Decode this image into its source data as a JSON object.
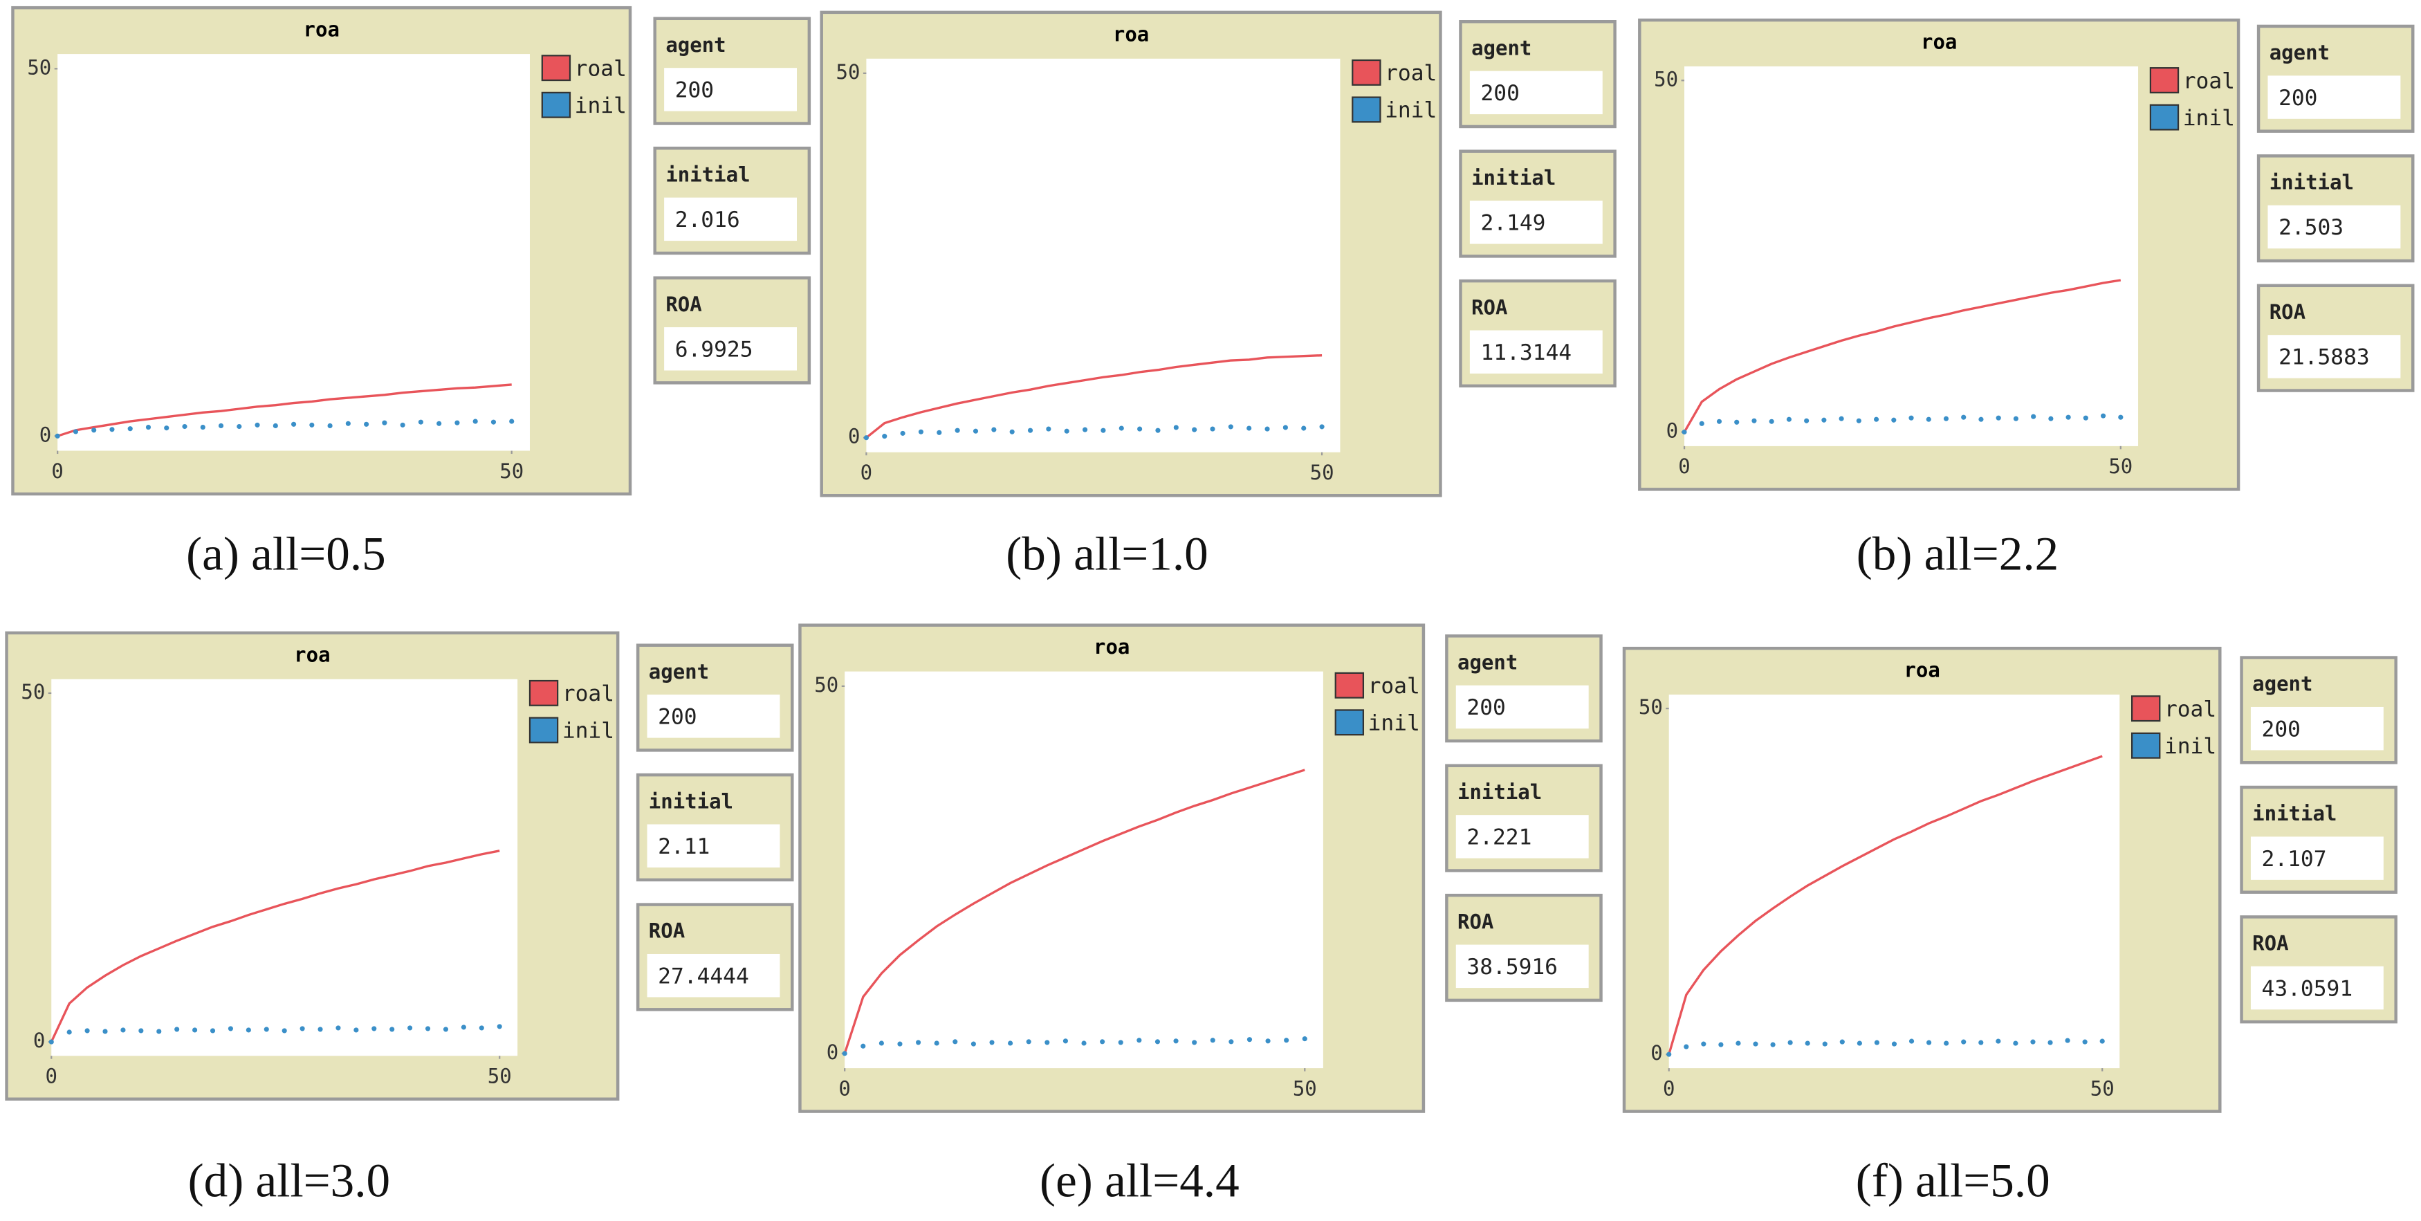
{
  "chart_data": [
    {
      "type": "line",
      "title": "roa",
      "caption": "(a) all=0.5",
      "x": [
        0,
        2,
        4,
        6,
        8,
        10,
        12,
        14,
        16,
        18,
        20,
        22,
        24,
        26,
        28,
        30,
        32,
        34,
        36,
        38,
        40,
        42,
        44,
        46,
        48,
        50
      ],
      "xlim": [
        0,
        52
      ],
      "ylim": [
        -2,
        52
      ],
      "xticks": [
        0,
        50
      ],
      "yticks": [
        0,
        50
      ],
      "series": [
        {
          "name": "roal",
          "color": "#e8545a",
          "values": [
            0,
            0.8,
            1.2,
            1.6,
            2.0,
            2.3,
            2.6,
            2.9,
            3.2,
            3.4,
            3.7,
            4.0,
            4.2,
            4.5,
            4.7,
            5.0,
            5.2,
            5.4,
            5.6,
            5.9,
            6.1,
            6.3,
            6.5,
            6.6,
            6.8,
            7.0
          ]
        },
        {
          "name": "inil",
          "color": "#3a8fc8",
          "style": "markers",
          "values": [
            0,
            0.6,
            0.8,
            0.9,
            1.0,
            1.2,
            1.1,
            1.3,
            1.2,
            1.4,
            1.3,
            1.5,
            1.4,
            1.6,
            1.5,
            1.4,
            1.7,
            1.6,
            1.8,
            1.5,
            1.9,
            1.7,
            1.8,
            2.0,
            1.9,
            2.0
          ]
        }
      ],
      "monitors": [
        {
          "label": "agent",
          "value": 200
        },
        {
          "label": "initial",
          "value": 2.016
        },
        {
          "label": "ROA",
          "value": 6.9925
        }
      ]
    },
    {
      "type": "line",
      "title": "roa",
      "caption": "(b) all=1.0",
      "x": [
        0,
        2,
        4,
        6,
        8,
        10,
        12,
        14,
        16,
        18,
        20,
        22,
        24,
        26,
        28,
        30,
        32,
        34,
        36,
        38,
        40,
        42,
        44,
        46,
        48,
        50
      ],
      "xlim": [
        0,
        52
      ],
      "ylim": [
        -2,
        52
      ],
      "xticks": [
        0,
        50
      ],
      "yticks": [
        0,
        50
      ],
      "series": [
        {
          "name": "roal",
          "color": "#e8545a",
          "values": [
            0,
            2.0,
            2.8,
            3.5,
            4.1,
            4.7,
            5.2,
            5.7,
            6.2,
            6.6,
            7.1,
            7.5,
            7.9,
            8.3,
            8.6,
            9.0,
            9.3,
            9.7,
            10.0,
            10.3,
            10.6,
            10.7,
            11.0,
            11.1,
            11.2,
            11.3
          ]
        },
        {
          "name": "inil",
          "color": "#3a8fc8",
          "style": "markers",
          "values": [
            0,
            0.2,
            0.6,
            0.8,
            0.7,
            1.0,
            0.9,
            1.1,
            0.8,
            1.0,
            1.2,
            0.9,
            1.1,
            1.0,
            1.3,
            1.2,
            1.0,
            1.4,
            1.1,
            1.2,
            1.5,
            1.3,
            1.2,
            1.4,
            1.3,
            1.5
          ]
        }
      ],
      "monitors": [
        {
          "label": "agent",
          "value": 200
        },
        {
          "label": "initial",
          "value": 2.149
        },
        {
          "label": "ROA",
          "value": 11.3144
        }
      ]
    },
    {
      "type": "line",
      "title": "roa",
      "caption": "(b) all=2.2",
      "x": [
        0,
        2,
        4,
        6,
        8,
        10,
        12,
        14,
        16,
        18,
        20,
        22,
        24,
        26,
        28,
        30,
        32,
        34,
        36,
        38,
        40,
        42,
        44,
        46,
        48,
        50
      ],
      "xlim": [
        0,
        52
      ],
      "ylim": [
        -2,
        52
      ],
      "xticks": [
        0,
        50
      ],
      "yticks": [
        0,
        50
      ],
      "series": [
        {
          "name": "roal",
          "color": "#e8545a",
          "values": [
            0,
            4.3,
            6.1,
            7.5,
            8.6,
            9.7,
            10.6,
            11.4,
            12.2,
            13.0,
            13.7,
            14.3,
            15.0,
            15.6,
            16.2,
            16.7,
            17.3,
            17.8,
            18.3,
            18.8,
            19.3,
            19.8,
            20.2,
            20.7,
            21.2,
            21.6
          ]
        },
        {
          "name": "inil",
          "color": "#3a8fc8",
          "style": "markers",
          "values": [
            0,
            1.2,
            1.5,
            1.4,
            1.6,
            1.5,
            1.8,
            1.6,
            1.7,
            1.9,
            1.6,
            1.8,
            1.7,
            2.0,
            1.8,
            1.9,
            2.1,
            1.8,
            2.0,
            1.9,
            2.2,
            1.9,
            2.1,
            2.0,
            2.3,
            2.1
          ]
        }
      ],
      "monitors": [
        {
          "label": "agent",
          "value": 200
        },
        {
          "label": "initial",
          "value": 2.503
        },
        {
          "label": "ROA",
          "value": 21.5883
        }
      ]
    },
    {
      "type": "line",
      "title": "roa",
      "caption": "(d) all=3.0",
      "x": [
        0,
        2,
        4,
        6,
        8,
        10,
        12,
        14,
        16,
        18,
        20,
        22,
        24,
        26,
        28,
        30,
        32,
        34,
        36,
        38,
        40,
        42,
        44,
        46,
        48,
        50
      ],
      "xlim": [
        0,
        52
      ],
      "ylim": [
        -2,
        52
      ],
      "xticks": [
        0,
        50
      ],
      "yticks": [
        0,
        50
      ],
      "series": [
        {
          "name": "roal",
          "color": "#e8545a",
          "values": [
            0,
            5.5,
            7.8,
            9.5,
            11.0,
            12.3,
            13.4,
            14.5,
            15.5,
            16.5,
            17.3,
            18.2,
            19.0,
            19.8,
            20.5,
            21.3,
            22.0,
            22.6,
            23.3,
            23.9,
            24.5,
            25.2,
            25.7,
            26.3,
            26.9,
            27.4
          ]
        },
        {
          "name": "inil",
          "color": "#3a8fc8",
          "style": "markers",
          "values": [
            0,
            1.4,
            1.6,
            1.5,
            1.7,
            1.6,
            1.5,
            1.8,
            1.7,
            1.6,
            1.9,
            1.7,
            1.8,
            1.6,
            1.9,
            1.8,
            2.0,
            1.7,
            1.9,
            1.8,
            2.0,
            1.9,
            1.8,
            2.1,
            2.0,
            2.2
          ]
        }
      ],
      "monitors": [
        {
          "label": "agent",
          "value": 200
        },
        {
          "label": "initial",
          "value": 2.11
        },
        {
          "label": "ROA",
          "value": 27.4444
        }
      ]
    },
    {
      "type": "line",
      "title": "roa",
      "caption": "(e) all=4.4",
      "x": [
        0,
        2,
        4,
        6,
        8,
        10,
        12,
        14,
        16,
        18,
        20,
        22,
        24,
        26,
        28,
        30,
        32,
        34,
        36,
        38,
        40,
        42,
        44,
        46,
        48,
        50
      ],
      "xlim": [
        0,
        52
      ],
      "ylim": [
        -2,
        52
      ],
      "xticks": [
        0,
        50
      ],
      "yticks": [
        0,
        50
      ],
      "series": [
        {
          "name": "roal",
          "color": "#e8545a",
          "values": [
            0,
            7.7,
            10.9,
            13.4,
            15.4,
            17.3,
            18.9,
            20.4,
            21.8,
            23.2,
            24.4,
            25.6,
            26.7,
            27.8,
            28.9,
            29.9,
            30.9,
            31.8,
            32.8,
            33.7,
            34.5,
            35.4,
            36.2,
            37.0,
            37.8,
            38.6
          ]
        },
        {
          "name": "inil",
          "color": "#3a8fc8",
          "style": "markers",
          "values": [
            0,
            1.0,
            1.4,
            1.3,
            1.5,
            1.4,
            1.6,
            1.3,
            1.5,
            1.4,
            1.6,
            1.5,
            1.7,
            1.4,
            1.6,
            1.5,
            1.8,
            1.6,
            1.7,
            1.5,
            1.8,
            1.6,
            1.9,
            1.7,
            1.8,
            2.0
          ]
        }
      ],
      "monitors": [
        {
          "label": "agent",
          "value": 200
        },
        {
          "label": "initial",
          "value": 2.221
        },
        {
          "label": "ROA",
          "value": 38.5916
        }
      ]
    },
    {
      "type": "line",
      "title": "roa",
      "caption": "(f) all=5.0",
      "x": [
        0,
        2,
        4,
        6,
        8,
        10,
        12,
        14,
        16,
        18,
        20,
        22,
        24,
        26,
        28,
        30,
        32,
        34,
        36,
        38,
        40,
        42,
        44,
        46,
        48,
        50
      ],
      "xlim": [
        0,
        52
      ],
      "ylim": [
        -2,
        52
      ],
      "xticks": [
        0,
        50
      ],
      "yticks": [
        0,
        50
      ],
      "series": [
        {
          "name": "roal",
          "color": "#e8545a",
          "values": [
            0,
            8.6,
            12.2,
            14.9,
            17.2,
            19.3,
            21.1,
            22.8,
            24.4,
            25.8,
            27.2,
            28.5,
            29.8,
            31.1,
            32.2,
            33.4,
            34.4,
            35.5,
            36.6,
            37.5,
            38.5,
            39.5,
            40.4,
            41.3,
            42.2,
            43.1
          ]
        },
        {
          "name": "inil",
          "color": "#3a8fc8",
          "style": "markers",
          "values": [
            0,
            1.1,
            1.5,
            1.4,
            1.6,
            1.5,
            1.4,
            1.7,
            1.6,
            1.5,
            1.8,
            1.6,
            1.7,
            1.5,
            1.9,
            1.7,
            1.6,
            1.8,
            1.7,
            1.9,
            1.6,
            1.8,
            1.7,
            2.0,
            1.8,
            1.9
          ]
        }
      ],
      "monitors": [
        {
          "label": "agent",
          "value": 200
        },
        {
          "label": "initial",
          "value": 2.107
        },
        {
          "label": "ROA",
          "value": 43.0591
        }
      ]
    }
  ]
}
